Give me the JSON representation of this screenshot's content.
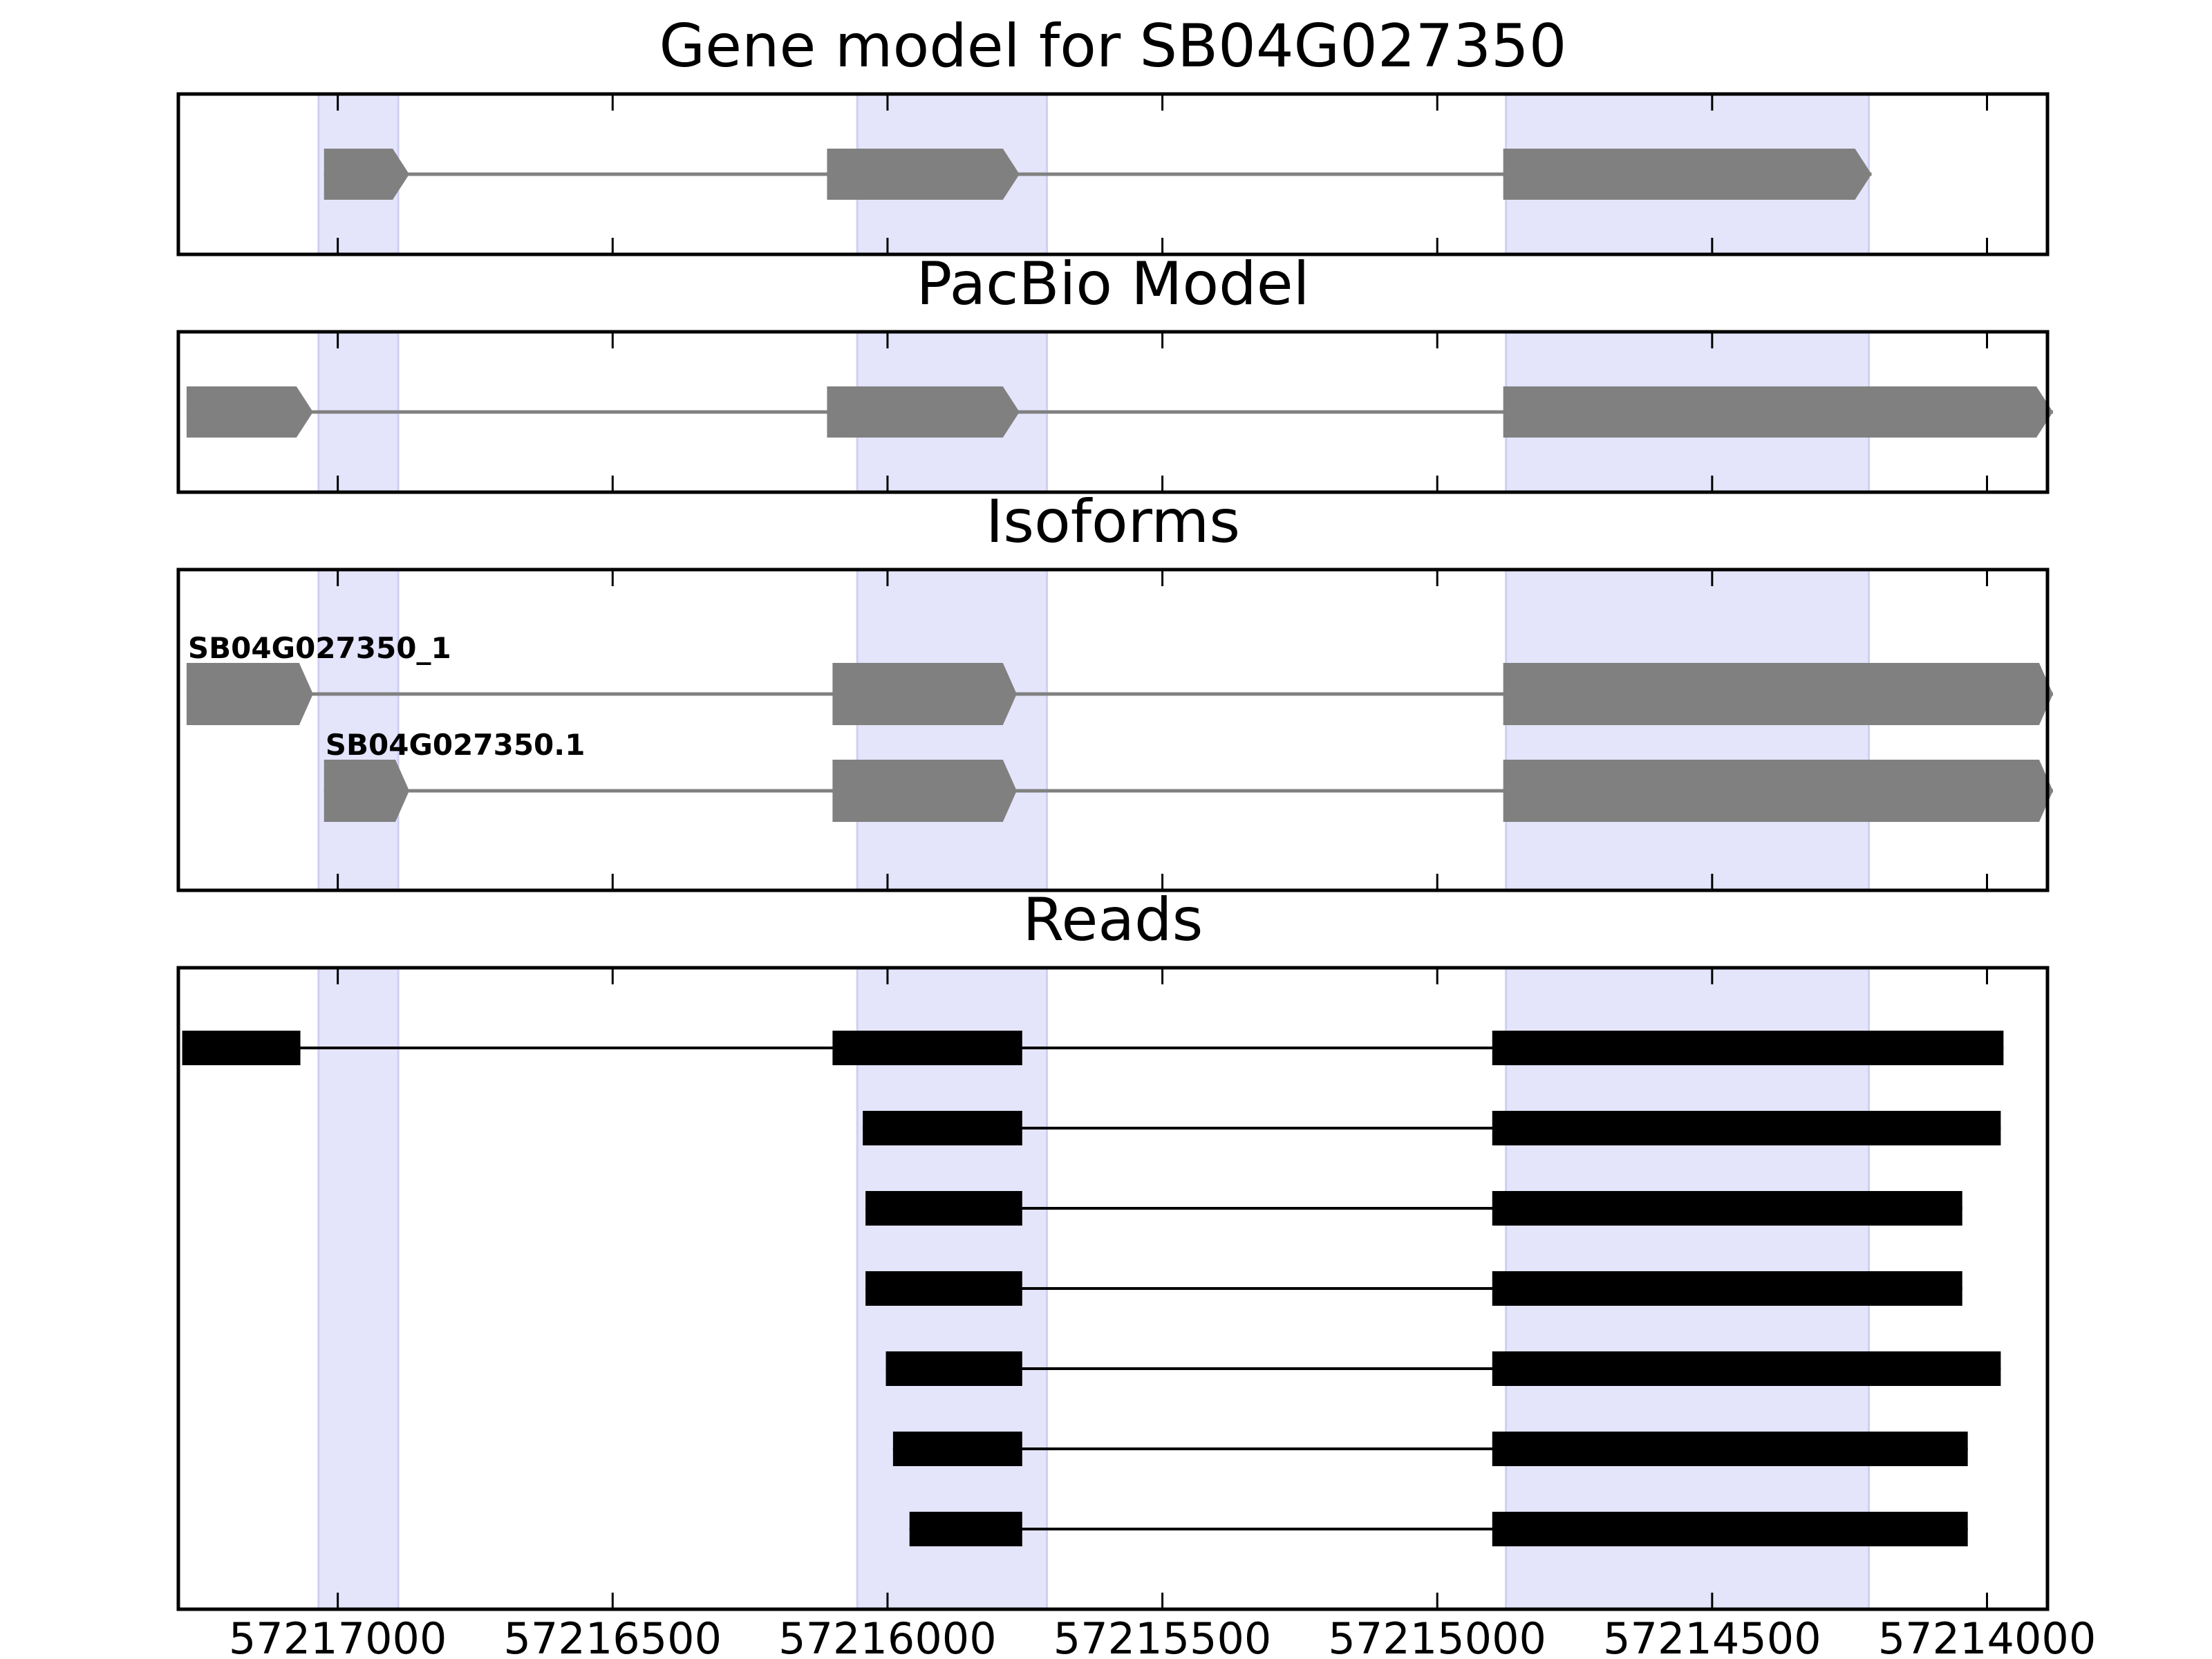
{
  "figure": {
    "panels": [
      {
        "id": "gene-model",
        "title": "Gene model for SB04G027350",
        "kind": "gene",
        "tracks": [
          {
            "label": "",
            "exons": [
              [
                57217025,
                57216870
              ],
              [
                57216110,
                57215760
              ],
              [
                57214880,
                57214210
              ]
            ]
          }
        ]
      },
      {
        "id": "pacbio-model",
        "title": "PacBio Model",
        "kind": "gene",
        "tracks": [
          {
            "label": "",
            "exons": [
              [
                57217275,
                57217045
              ],
              [
                57216110,
                57215760
              ],
              [
                57214880,
                57213880
              ]
            ]
          }
        ]
      },
      {
        "id": "isoforms",
        "title": "Isoforms",
        "kind": "gene",
        "tracks": [
          {
            "label": "SB04G027350_1",
            "exons": [
              [
                57217275,
                57217045
              ],
              [
                57216100,
                57215765
              ],
              [
                57214880,
                57213880
              ]
            ]
          },
          {
            "label": "SB04G027350.1",
            "exons": [
              [
                57217025,
                57216870
              ],
              [
                57216100,
                57215765
              ],
              [
                57214880,
                57213880
              ]
            ]
          }
        ]
      },
      {
        "id": "reads",
        "title": "Reads",
        "kind": "reads",
        "tracks": [
          {
            "label": "",
            "exons": [
              [
                57217283,
                57217068
              ],
              [
                57216100,
                57215755
              ],
              [
                57214900,
                57213970
              ]
            ]
          },
          {
            "label": "",
            "exons": [
              [
                57216045,
                57215755
              ],
              [
                57214900,
                57213975
              ]
            ]
          },
          {
            "label": "",
            "exons": [
              [
                57216040,
                57215755
              ],
              [
                57214900,
                57214045
              ]
            ]
          },
          {
            "label": "",
            "exons": [
              [
                57216040,
                57215755
              ],
              [
                57214900,
                57214045
              ]
            ]
          },
          {
            "label": "",
            "exons": [
              [
                57216003,
                57215755
              ],
              [
                57214900,
                57213975
              ]
            ]
          },
          {
            "label": "",
            "exons": [
              [
                57215990,
                57215755
              ],
              [
                57214900,
                57214035
              ]
            ]
          },
          {
            "label": "",
            "exons": [
              [
                57215960,
                57215755
              ],
              [
                57214900,
                57214035
              ]
            ]
          }
        ]
      }
    ],
    "highlight_regions": [
      [
        57217035,
        57216890
      ],
      [
        57216055,
        57215710
      ],
      [
        57214875,
        57214215
      ]
    ],
    "xaxis": {
      "min": 57217290,
      "max": 57213890,
      "ticks": [
        57217000,
        57216500,
        57216000,
        57215500,
        57215000,
        57214500,
        57214000
      ],
      "tick_labels": [
        "57217000",
        "57216500",
        "57216000",
        "57215500",
        "57215000",
        "57214500",
        "57214000"
      ]
    },
    "colors": {
      "highlight": "#e4e4fb",
      "highlight_edge": "#cfcff3",
      "model": "#808080",
      "read": "#000000",
      "frame": "#000000"
    }
  }
}
